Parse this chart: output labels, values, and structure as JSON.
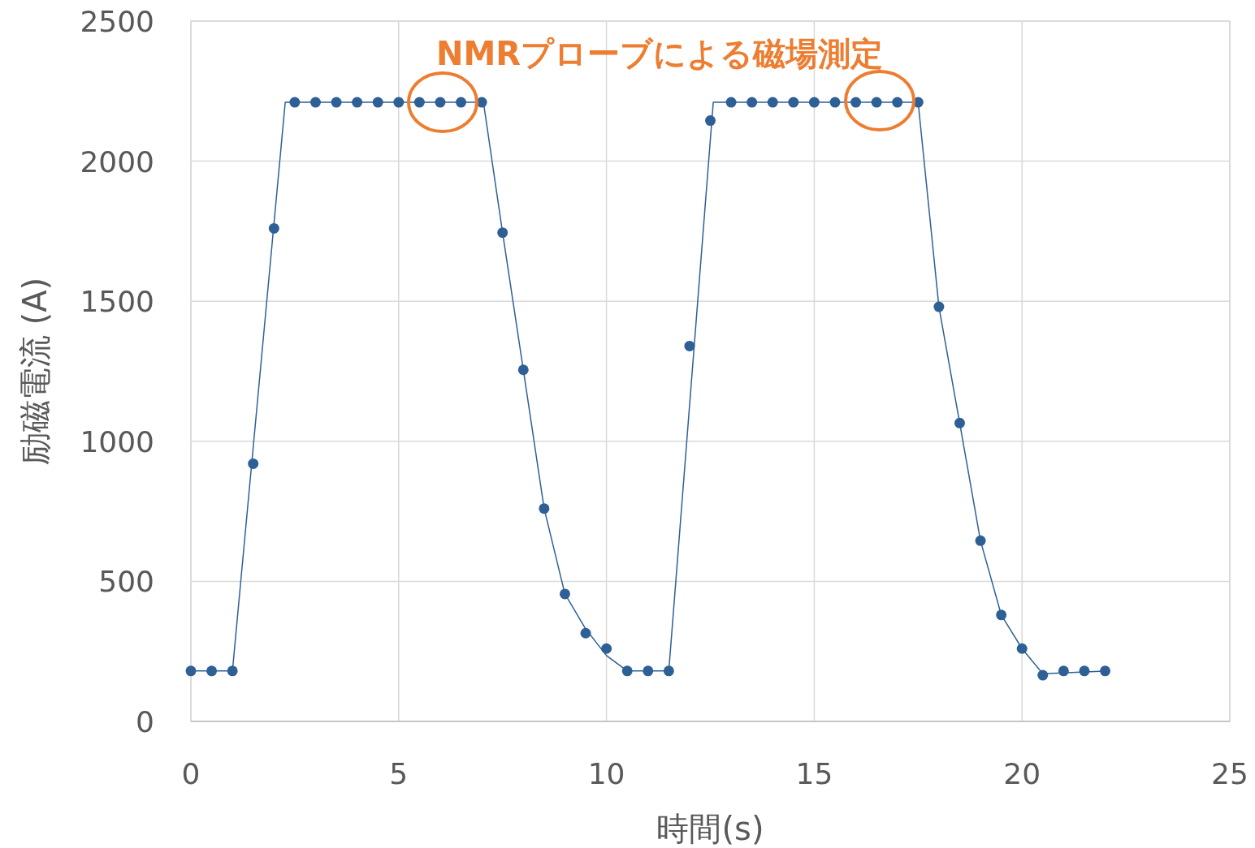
{
  "chart_data": {
    "type": "scatter",
    "xlabel": "時間(s)",
    "ylabel": "励磁電流 (A)",
    "annotations": [
      "NMRプローブによる磁場測定"
    ],
    "xlim": [
      0,
      25
    ],
    "xticks": [
      0,
      5,
      10,
      15,
      20,
      25
    ],
    "ylim": [
      0,
      2500
    ],
    "yticks": [
      0,
      500,
      1000,
      1500,
      2000,
      2500
    ],
    "grid": true,
    "x": [
      0,
      0.5,
      1,
      1.5,
      2,
      2.5,
      3,
      3.5,
      4,
      4.5,
      5,
      5.5,
      6,
      6.5,
      7,
      7.5,
      8,
      8.5,
      9,
      9.5,
      10,
      10.5,
      11,
      11.5,
      12,
      12.5,
      13,
      13.5,
      14,
      14.5,
      15,
      15.5,
      16,
      16.5,
      17,
      17.5,
      18,
      18.5,
      19,
      19.5,
      20,
      20.5,
      21,
      21.5,
      22
    ],
    "series": [
      {
        "marker": "circle",
        "color": "#2e6096",
        "values": [
          180,
          180,
          180,
          920,
          1760,
          2210,
          2210,
          2210,
          2210,
          2210,
          2210,
          2210,
          2210,
          2210,
          2210,
          1745,
          1255,
          760,
          455,
          315,
          260,
          180,
          180,
          180,
          1340,
          2145,
          2210,
          2210,
          2210,
          2210,
          2210,
          2210,
          2210,
          2210,
          2210,
          2210,
          1480,
          1065,
          645,
          380,
          260,
          165,
          180,
          180,
          180
        ]
      },
      {
        "type": "line",
        "marker": "none",
        "color": "#2e6096",
        "x": [
          0,
          1,
          2.27,
          7.04,
          7.5,
          8,
          8.5,
          9,
          9.5,
          10,
          10.5,
          11.5,
          12.57,
          17.5,
          18,
          18.5,
          19,
          19.5,
          20,
          20.5,
          22.1
        ],
        "values": [
          180,
          180,
          2210,
          2210,
          1745,
          1255,
          760,
          455,
          330,
          235,
          180,
          180,
          2210,
          2210,
          1480,
          1065,
          645,
          380,
          260,
          170,
          180
        ]
      }
    ]
  }
}
